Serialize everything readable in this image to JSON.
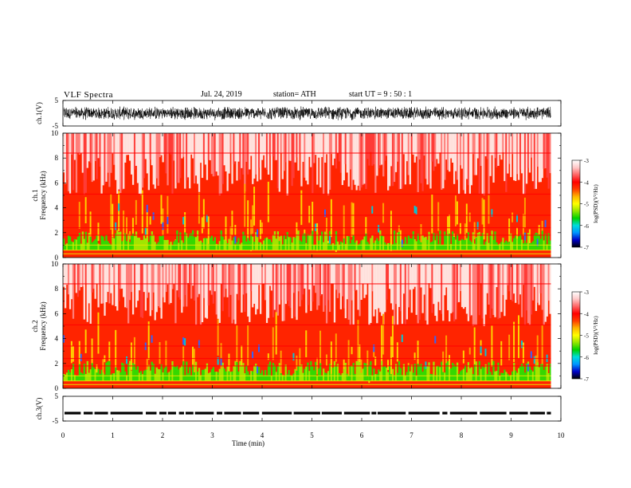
{
  "header": {
    "title": "VLF  Spectra",
    "date": "Jul.  24, 2019",
    "station": "station= ATH",
    "start": "start  UT  =    9  : 50 : 1"
  },
  "colors": {
    "colormap": [
      "#000000",
      "#0000c8",
      "#0096ff",
      "#00dcdc",
      "#00d200",
      "#96e600",
      "#ffff00",
      "#ffb400",
      "#ff3c00",
      "#ff0000",
      "#ff6464",
      "#ffc8c8",
      "#ffffff"
    ],
    "trace": "#000000",
    "axes": "#000000"
  },
  "chart_data": [
    {
      "type": "line",
      "panel": "ch1-waveform",
      "ylabel": "ch.1(V)",
      "yticks": [
        "5",
        "-5"
      ],
      "ylim": [
        -5,
        5
      ],
      "xlim": [
        0,
        10
      ],
      "data_extent_min": 9.8,
      "description_value": "noise waveform of amplitude ~ ±2.5 V"
    },
    {
      "type": "heatmap",
      "panel": "ch1-spectrogram",
      "ylabel": "ch.1\nFrequency  (kHz)",
      "ylabel_lines": [
        "ch.1",
        "Frequency  (kHz)"
      ],
      "yticks": [
        "0",
        "2",
        "4",
        "6",
        "8",
        "10"
      ],
      "ylim": [
        0,
        10
      ],
      "xlim": [
        0,
        10
      ],
      "data_extent_min": 9.8,
      "colorbar": {
        "label": "log(PSD)(V²/Hz)",
        "ticks": [
          "-3",
          "-4",
          "-5",
          "-6",
          "-7"
        ],
        "range": [
          -7,
          -3
        ]
      }
    },
    {
      "type": "heatmap",
      "panel": "ch2-spectrogram",
      "ylabel_lines": [
        "ch.2",
        "Frequency  (kHz)"
      ],
      "yticks": [
        "0",
        "2",
        "4",
        "6",
        "8",
        "10"
      ],
      "ylim": [
        0,
        10
      ],
      "xlim": [
        0,
        10
      ],
      "data_extent_min": 9.8,
      "colorbar": {
        "label": "log(PSD)(V²/Hz)",
        "ticks": [
          "-3",
          "-4",
          "-5",
          "-6",
          "-7"
        ],
        "range": [
          -7,
          -3
        ]
      }
    },
    {
      "type": "line",
      "panel": "ch3-waveform",
      "ylabel": "ch.3(V)",
      "yticks": [
        "5",
        "-5"
      ],
      "ylim": [
        -5,
        5
      ],
      "xlim": [
        0,
        10
      ],
      "data_extent_min": 9.8,
      "level_v": -1.8
    }
  ],
  "xaxis": {
    "label": "Time  (min)",
    "ticks": [
      "0",
      "1",
      "2",
      "3",
      "4",
      "5",
      "6",
      "7",
      "8",
      "9",
      "10"
    ]
  }
}
